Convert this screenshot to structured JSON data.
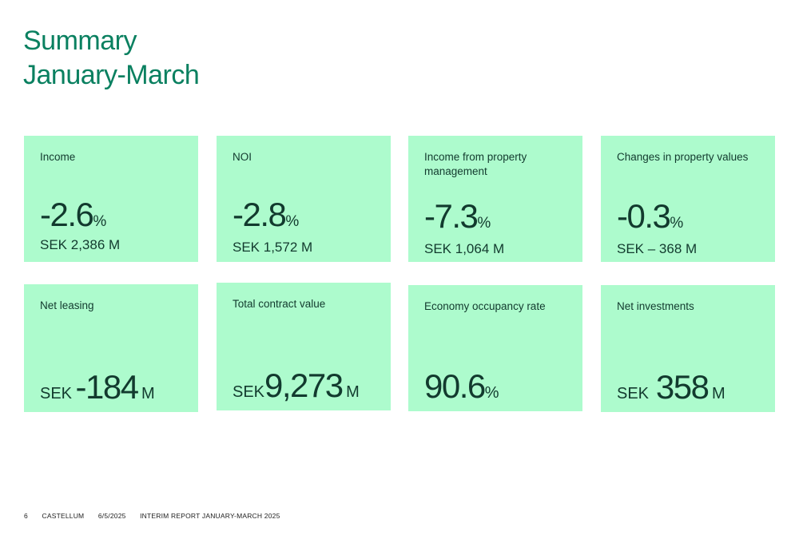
{
  "title": {
    "line1": "Summary",
    "line2": "January-March"
  },
  "cards_top": [
    {
      "label": "Income",
      "value": "-2.6",
      "unit": "%",
      "sub": "SEK 2,386 M"
    },
    {
      "label": "NOI",
      "value": "-2.8",
      "unit": "%",
      "sub": "SEK 1,572 M"
    },
    {
      "label": "Income from property management",
      "value": "-7.3",
      "unit": "%",
      "sub": "SEK 1,064 M"
    },
    {
      "label": "Changes in property values",
      "value": "-0.3",
      "unit": "%",
      "sub": "SEK – 368 M"
    }
  ],
  "cards_bottom": [
    {
      "label": "Net leasing",
      "currency": "SEK",
      "value": "-184",
      "unit": "M"
    },
    {
      "label": "Total contract value",
      "currency": "SEK",
      "value": "9,273",
      "unit": "M"
    },
    {
      "label": "Economy occupancy rate",
      "value": "90.6",
      "unit": "%"
    },
    {
      "label": "Net investments",
      "currency": "SEK",
      "value": "358",
      "unit": "M"
    }
  ],
  "footer": {
    "page": "6",
    "company": "CASTELLUM",
    "date": "6/5/2025",
    "report": "INTERIM REPORT JANUARY-MARCH 2025"
  }
}
